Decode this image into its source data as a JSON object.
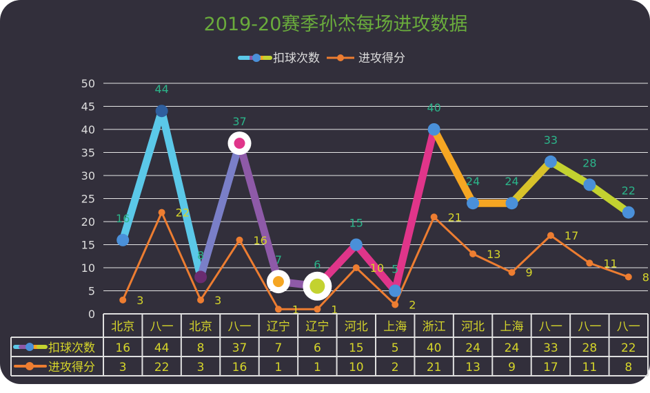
{
  "chart_data": {
    "type": "line",
    "title": "2019-20赛季孙杰每场进攻数据",
    "categories": [
      "北京",
      "八一",
      "北京",
      "八一",
      "辽宁",
      "辽宁",
      "河北",
      "上海",
      "浙江",
      "河北",
      "上海",
      "八一",
      "八一",
      "八一"
    ],
    "series": [
      {
        "name": "扣球次数",
        "values": [
          16,
          44,
          8,
          37,
          7,
          6,
          15,
          5,
          40,
          24,
          24,
          33,
          28,
          22
        ]
      },
      {
        "name": "进攻得分",
        "values": [
          3,
          22,
          3,
          16,
          1,
          1,
          10,
          2,
          21,
          13,
          9,
          17,
          11,
          8
        ],
        "color": "#ed7d31"
      }
    ],
    "y_ticks": [
      "0",
      "5",
      "10",
      "15",
      "20",
      "25",
      "30",
      "35",
      "40",
      "45",
      "50"
    ],
    "ylim": [
      0,
      50
    ],
    "grid": true,
    "legend": "top",
    "data_table": true,
    "colors": {
      "background": "#322f3b",
      "title": "#6aac3c",
      "spike_labels": "#2bb58a",
      "score_labels": "#d6d62a",
      "table_text": "#d6d62a",
      "segment_colors": [
        "#5bc8e8",
        "#5bc8e8",
        "#7a7fc8",
        "#8e5aa8",
        "#8e5aa8",
        "#e0358a",
        "#e0358a",
        "#e0358a",
        "#f5a623",
        "#f5a623",
        "#d8c22a",
        "#c3d230",
        "#c3d230"
      ]
    }
  }
}
